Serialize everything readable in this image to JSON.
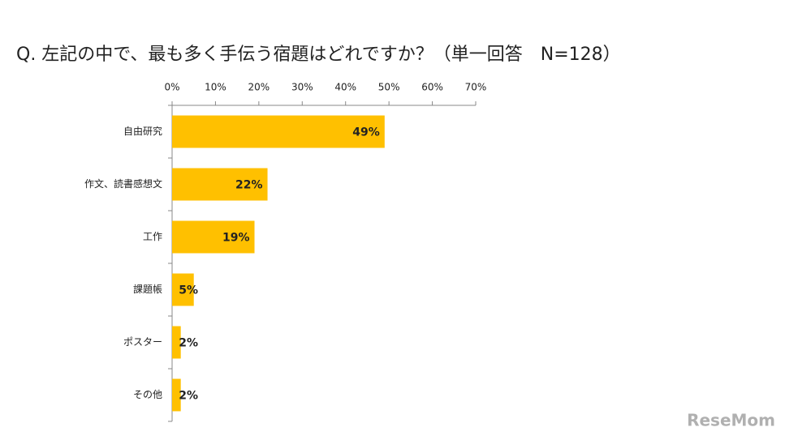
{
  "chart_data": {
    "type": "bar",
    "orientation": "horizontal",
    "title": "Q.  左記の中で、最も多く手伝う宿題はどれですか？（単一回答　N=128）",
    "categories": [
      "自由研究",
      "作文、読書感想文",
      "工作",
      "課題帳",
      "ポスター",
      "その他"
    ],
    "values": [
      49,
      22,
      19,
      5,
      2,
      2
    ],
    "value_labels": [
      "49%",
      "22%",
      "19%",
      "5%",
      "2%",
      "2%"
    ],
    "color": "#FFC000",
    "xlim": [
      0,
      70
    ],
    "xticks": [
      {
        "value": 0,
        "label": "0%"
      },
      {
        "value": 10,
        "label": "10%"
      },
      {
        "value": 20,
        "label": "20%"
      },
      {
        "value": 30,
        "label": "30%"
      },
      {
        "value": 40,
        "label": "40%"
      },
      {
        "value": 50,
        "label": "50%"
      },
      {
        "value": 60,
        "label": "60%"
      },
      {
        "value": 70,
        "label": "70%"
      }
    ],
    "watermark": "ReseMom"
  }
}
